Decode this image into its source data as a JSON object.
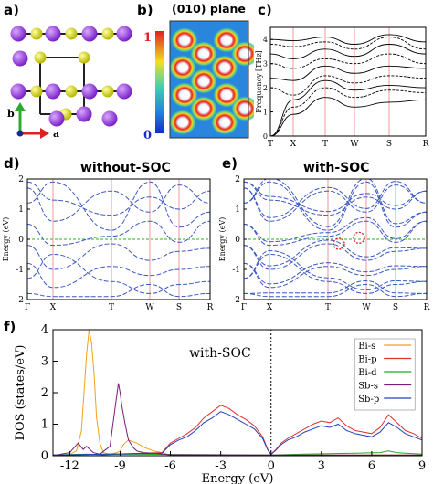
{
  "figure": {
    "panels": {
      "a": {
        "label": "a)"
      },
      "b": {
        "label": "b)",
        "title": "(010) plane",
        "scale_max": "1",
        "scale_min": "0"
      },
      "c": {
        "label": "c)"
      },
      "d": {
        "label": "d)",
        "title": "without-SOC"
      },
      "e": {
        "label": "e)",
        "title": "with-SOC"
      },
      "f": {
        "label": "f)"
      }
    },
    "axes_a": {
      "b": "b",
      "a": "a"
    }
  },
  "chart_data": [
    {
      "id": "c",
      "type": "line",
      "title": "",
      "ylabel": "Frequency [THz]",
      "xticks": [
        "T",
        "X",
        "T",
        "W",
        "S",
        "R"
      ],
      "yticks": [
        "0",
        "1",
        "2",
        "3",
        "4"
      ],
      "ylim": [
        0,
        4.5
      ],
      "colors": {
        "bands": "#000000",
        "vlines": "#e89a9a"
      }
    },
    {
      "id": "d",
      "type": "line",
      "title": "without-SOC",
      "ylabel": "Energy (eV)",
      "xticks": [
        "Γ",
        "X",
        "T",
        "W",
        "S",
        "R"
      ],
      "yticks": [
        "-2",
        "-1",
        "0",
        "1",
        "2"
      ],
      "ylim": [
        -2,
        2
      ],
      "colors": {
        "bands": "#3b57c4",
        "fermi": "#22bb22",
        "vlines": "#e89a9a"
      }
    },
    {
      "id": "e",
      "type": "line",
      "title": "with-SOC",
      "ylabel": "Energy (eV)",
      "xticks": [
        "Γ",
        "X",
        "T",
        "W",
        "S",
        "R"
      ],
      "yticks": [
        "-2",
        "-1",
        "0",
        "1",
        "2"
      ],
      "ylim": [
        -2,
        2
      ],
      "colors": {
        "bands": "#3b57c4",
        "fermi": "#22bb22",
        "vlines": "#e89a9a",
        "circles": "#e02020"
      }
    },
    {
      "id": "f",
      "type": "line",
      "title": "",
      "annotation": "with-SOC",
      "xlabel": "Energy (eV)",
      "ylabel": "DOS (states/eV)",
      "xlim": [
        -13,
        9
      ],
      "ylim": [
        0,
        4
      ],
      "xticks": [
        "-12",
        "-9",
        "-6",
        "-3",
        "0",
        "3",
        "6",
        "9"
      ],
      "yticks": [
        "0",
        "1",
        "2",
        "3",
        "4"
      ],
      "series": [
        {
          "name": "Bi-s",
          "color": "#f0a020",
          "x": [
            -13,
            -12.5,
            -12,
            -11.6,
            -11.3,
            -11.0,
            -10.85,
            -10.7,
            -10.55,
            -10.4,
            -10.2,
            -10.0,
            -9.6,
            -9.2,
            -9.0,
            -8.8,
            -8.5,
            -8.0,
            -7.5,
            -7.0,
            -6.5,
            -6.0,
            -5.0,
            0,
            9
          ],
          "y": [
            0,
            0.02,
            0.05,
            0.15,
            0.8,
            3.2,
            4.0,
            3.6,
            2.6,
            1.2,
            0.4,
            0.1,
            0.05,
            0.1,
            0.15,
            0.35,
            0.5,
            0.4,
            0.25,
            0.15,
            0.1,
            0.02,
            0.02,
            0.02,
            0.02
          ]
        },
        {
          "name": "Bi-p",
          "color": "#e03030",
          "x": [
            -13,
            -9.5,
            -6.5,
            -6.0,
            -5.5,
            -5.0,
            -4.5,
            -4.0,
            -3.5,
            -3.0,
            -2.5,
            -2.0,
            -1.5,
            -1.0,
            -0.5,
            -0.2,
            0,
            0.3,
            0.6,
            1.0,
            1.5,
            2.0,
            2.5,
            3.0,
            3.5,
            4.0,
            4.5,
            5.0,
            5.5,
            6.0,
            6.5,
            7.0,
            7.5,
            8.0,
            8.5,
            9.0
          ],
          "y": [
            0.02,
            0.05,
            0.1,
            0.4,
            0.55,
            0.7,
            0.9,
            1.2,
            1.4,
            1.6,
            1.5,
            1.3,
            1.15,
            0.95,
            0.6,
            0.2,
            0.05,
            0.2,
            0.4,
            0.55,
            0.7,
            0.85,
            1.0,
            1.1,
            1.05,
            1.2,
            0.95,
            0.8,
            0.75,
            0.7,
            0.9,
            1.3,
            1.05,
            0.8,
            0.7,
            0.55
          ]
        },
        {
          "name": "Bi-d",
          "color": "#22aa22",
          "x": [
            -13,
            -11,
            -10,
            -9,
            0,
            2,
            5,
            6.5,
            7.0,
            7.5,
            8.0,
            9.0
          ],
          "y": [
            0.02,
            0.05,
            0.03,
            0.05,
            0.02,
            0.05,
            0.08,
            0.1,
            0.15,
            0.1,
            0.08,
            0.05
          ]
        },
        {
          "name": "Sb-s",
          "color": "#7a1a7a",
          "x": [
            -13,
            -12.5,
            -12.0,
            -11.5,
            -11.2,
            -11.0,
            -10.6,
            -10.2,
            -9.6,
            -9.3,
            -9.1,
            -9.0,
            -8.9,
            -8.7,
            -8.5,
            -8.2,
            -8.0,
            -7.6,
            -7.0,
            -6.5,
            -6.0,
            -4,
            0,
            9
          ],
          "y": [
            0,
            0.05,
            0.1,
            0.4,
            0.2,
            0.3,
            0.1,
            0.05,
            0.3,
            1.5,
            2.3,
            2.0,
            1.6,
            1.0,
            0.5,
            0.25,
            0.15,
            0.1,
            0.08,
            0.05,
            0.03,
            0.03,
            0.02,
            0.02
          ]
        },
        {
          "name": "Sb-p",
          "color": "#2040c0",
          "x": [
            -13,
            -9.5,
            -6.5,
            -6.0,
            -5.5,
            -5.0,
            -4.5,
            -4.0,
            -3.5,
            -3.0,
            -2.5,
            -2.0,
            -1.5,
            -1.0,
            -0.5,
            -0.2,
            0,
            0.3,
            0.6,
            1.0,
            1.5,
            2.0,
            2.5,
            3.0,
            3.5,
            4.0,
            4.5,
            5.0,
            5.5,
            6.0,
            6.5,
            7.0,
            7.5,
            8.0,
            8.5,
            9.0
          ],
          "y": [
            0.02,
            0.05,
            0.08,
            0.35,
            0.5,
            0.6,
            0.8,
            1.05,
            1.2,
            1.4,
            1.3,
            1.15,
            1.0,
            0.85,
            0.55,
            0.18,
            0.04,
            0.18,
            0.35,
            0.5,
            0.6,
            0.75,
            0.85,
            0.95,
            0.9,
            1.0,
            0.8,
            0.7,
            0.65,
            0.6,
            0.75,
            1.05,
            0.9,
            0.7,
            0.6,
            0.5
          ]
        }
      ]
    }
  ]
}
